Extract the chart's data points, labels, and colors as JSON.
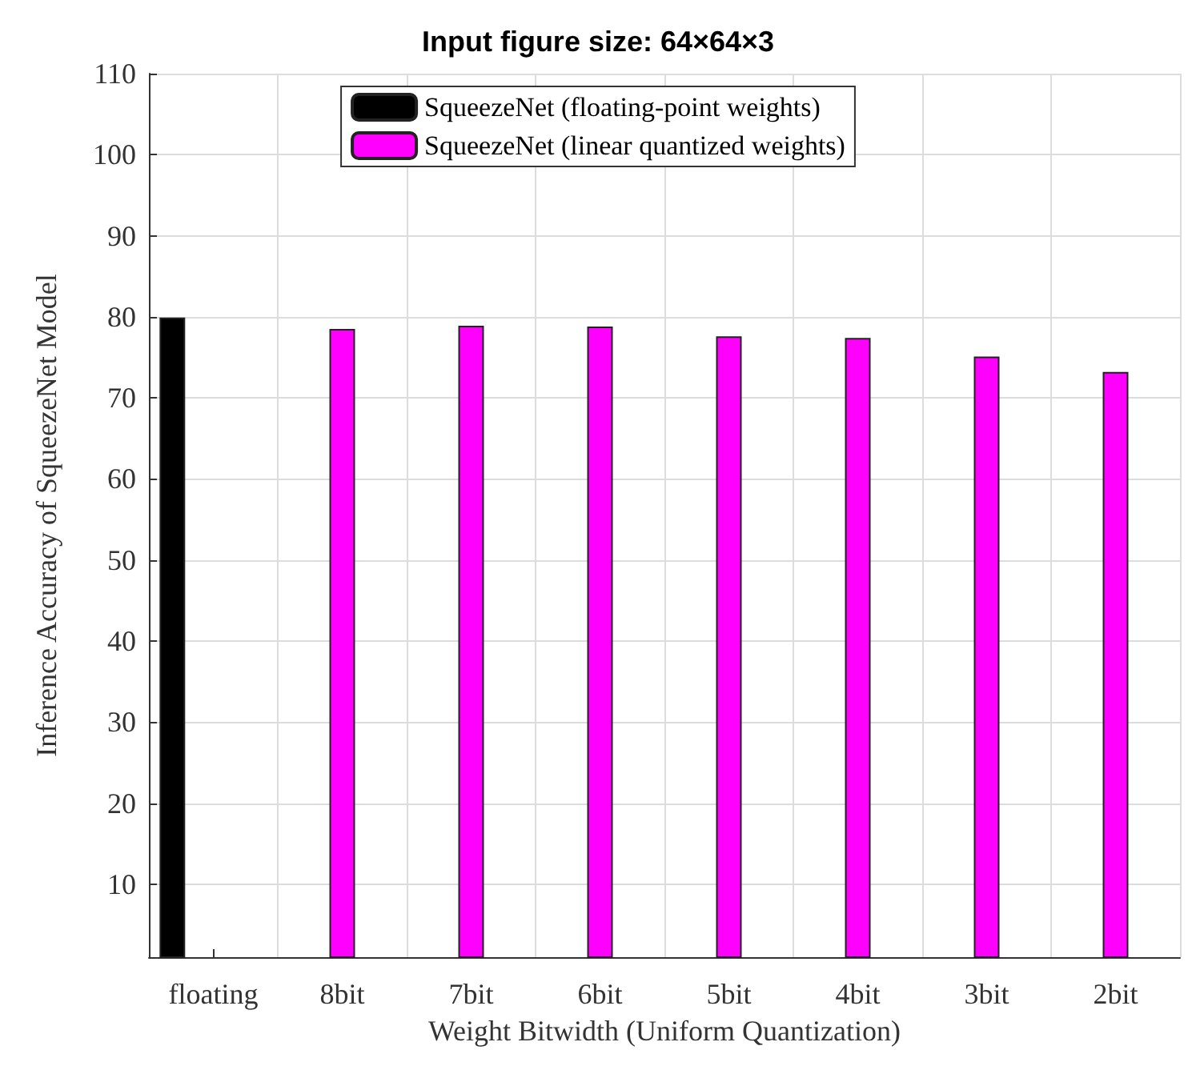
{
  "chart_data": {
    "type": "bar",
    "title": "Input figure size: 64×64×3",
    "xlabel": "Weight Bitwidth (Uniform Quantization)",
    "ylabel": "Inference Accuracy of SqueezeNet Model",
    "categories": [
      "floating",
      "8bit",
      "7bit",
      "6bit",
      "5bit",
      "4bit",
      "3bit",
      "2bit"
    ],
    "series": [
      {
        "name": "SqueezeNet (floating-point weights)",
        "color": "#000000",
        "values": [
          79.9,
          null,
          null,
          null,
          null,
          null,
          null,
          null
        ]
      },
      {
        "name": "SqueezeNet (linear quantized weights)",
        "color": "#ff00ff",
        "values": [
          null,
          78.5,
          78.9,
          78.8,
          77.6,
          77.4,
          75.1,
          73.2
        ]
      }
    ],
    "ylim": [
      1,
      110
    ],
    "yticks": [
      10,
      20,
      30,
      40,
      50,
      60,
      70,
      80,
      90,
      100,
      110
    ],
    "grid": true,
    "legend": "top"
  }
}
